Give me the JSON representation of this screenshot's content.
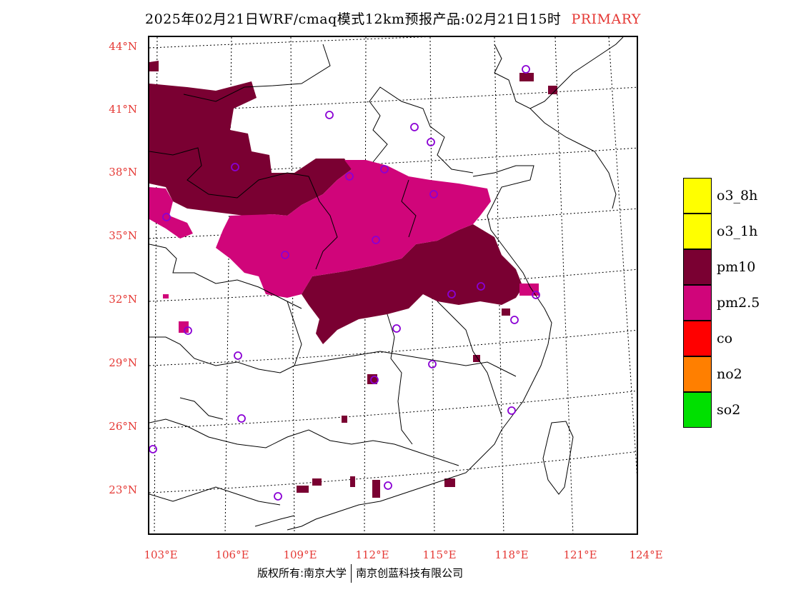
{
  "header": {
    "title": "2025年02月21日WRF/cmaq模式12km预报产品:02月21日15时",
    "tag": "PRIMARY"
  },
  "map": {
    "lat_labels": [
      "44°N",
      "41°N",
      "38°N",
      "35°N",
      "32°N",
      "29°N",
      "26°N",
      "23°N"
    ],
    "lon_labels": [
      "103°E",
      "106°E",
      "109°E",
      "112°E",
      "115°E",
      "118°E",
      "121°E",
      "124°E"
    ]
  },
  "legend": [
    {
      "label": "o3_8h",
      "color": "#ffff00"
    },
    {
      "label": "o3_1h",
      "color": "#ffff00"
    },
    {
      "label": "pm10",
      "color": "#7a0032"
    },
    {
      "label": "pm2.5",
      "color": "#d0057a"
    },
    {
      "label": "co",
      "color": "#ff0000"
    },
    {
      "label": "no2",
      "color": "#ff7f00"
    },
    {
      "label": "so2",
      "color": "#00e000"
    }
  ],
  "footer": {
    "left": "版权所有:南京大学",
    "right": "南京创蓝科技有限公司"
  }
}
